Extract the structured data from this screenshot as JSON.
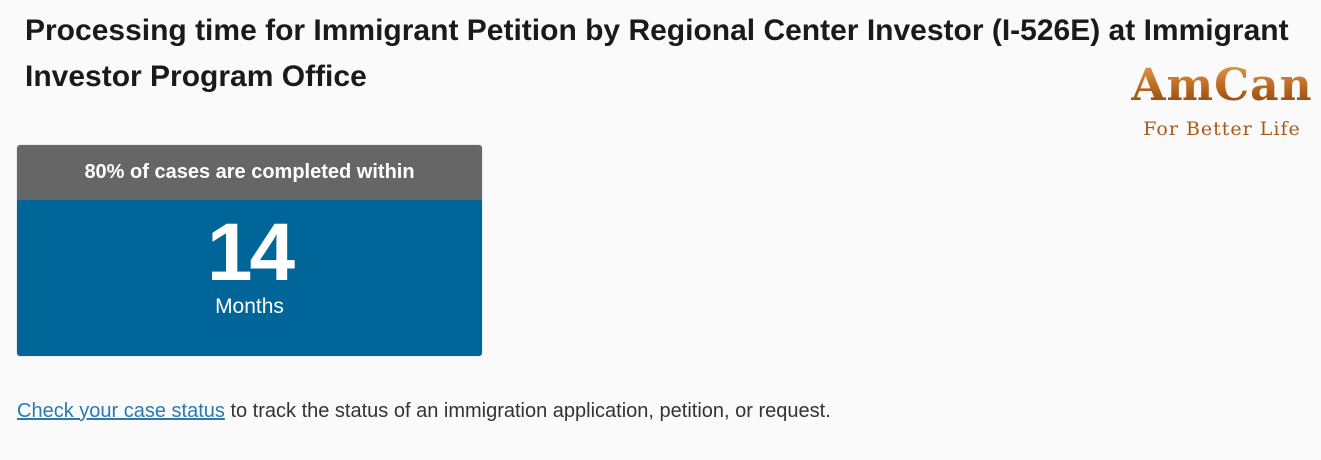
{
  "header": {
    "title": "Processing time for Immigrant Petition by Regional Center Investor (I-526E) at Immigrant Investor Program Office"
  },
  "logo": {
    "name": "AmCan",
    "tagline": "For Better Life"
  },
  "card": {
    "heading": "80% of cases are completed within",
    "value": "14",
    "unit": "Months"
  },
  "footer": {
    "link": "Check your case status",
    "text": "to track the status of an immigration application, petition, or request."
  }
}
